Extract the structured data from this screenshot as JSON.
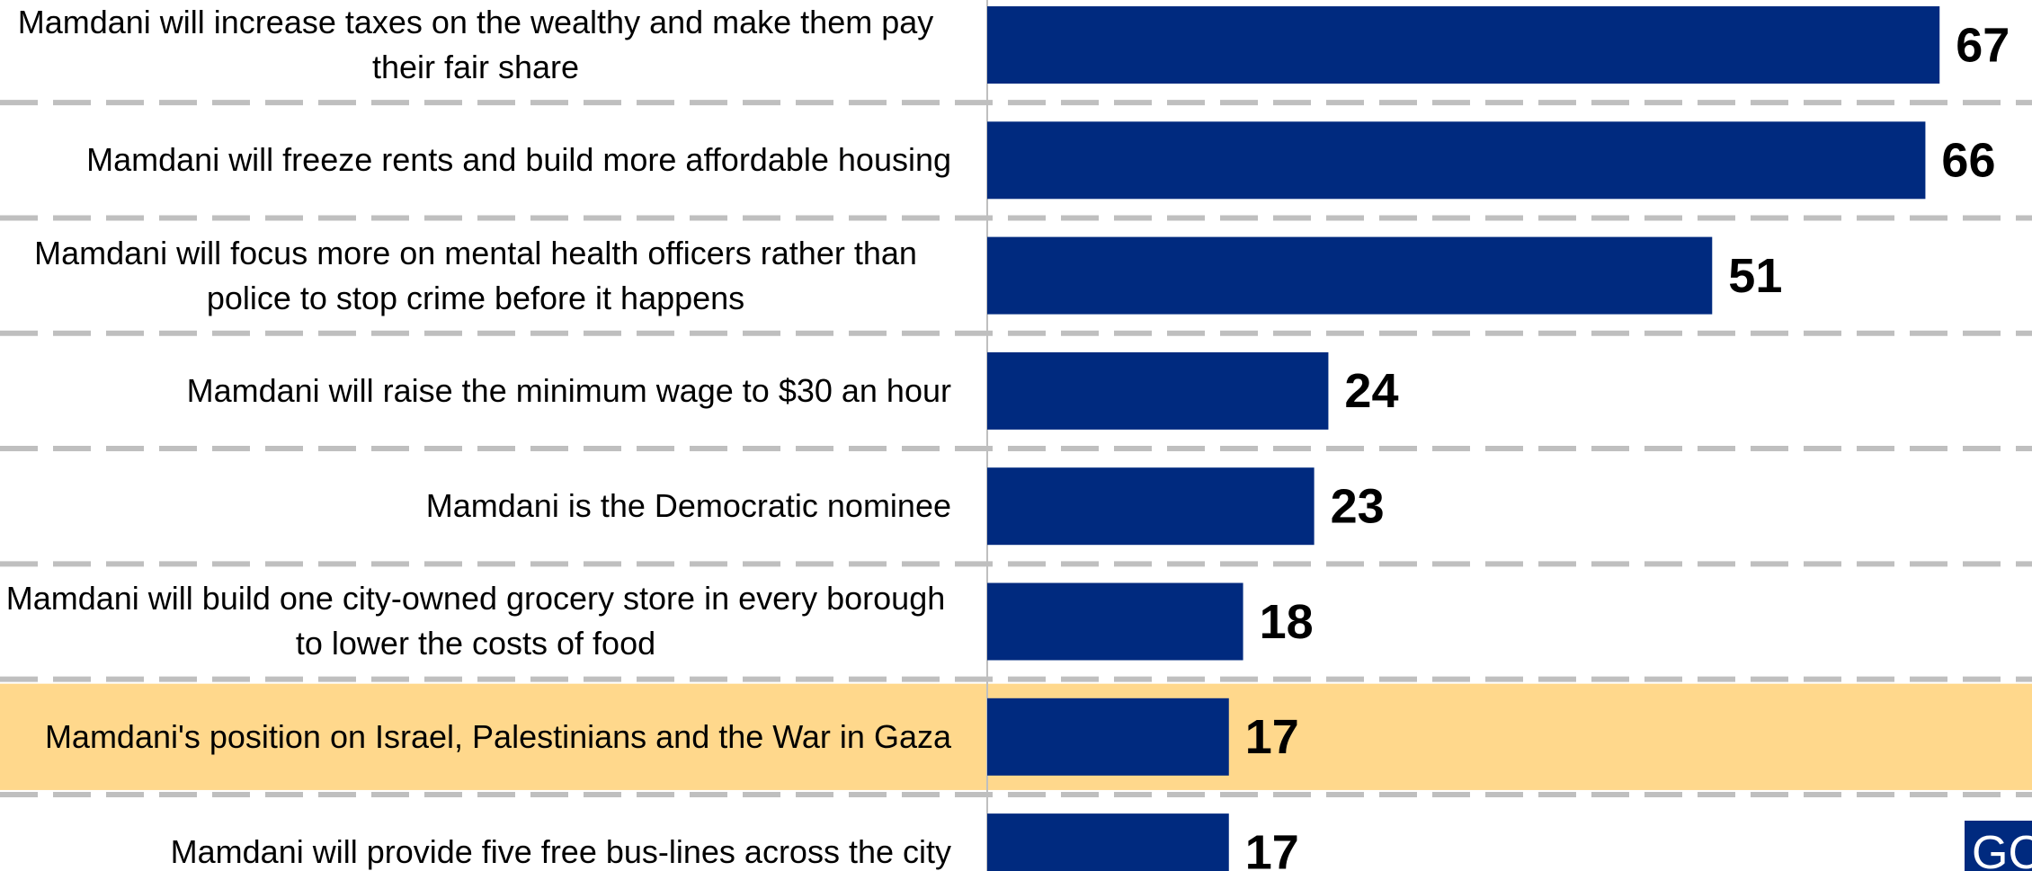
{
  "chart_data": {
    "type": "hbar",
    "categories": [
      "Mamdani will increase taxes on the wealthy and make them pay their fair share",
      "Mamdani will freeze rents and build more affordable housing",
      "Mamdani will focus more on mental health officers rather than police to stop crime before it happens",
      "Mamdani will raise the minimum wage to $30 an hour",
      "Mamdani is the Democratic nominee",
      "Mamdani will build one city-owned grocery store in every borough to lower the costs of food",
      "Mamdani's position on Israel, Palestinians and the War in Gaza",
      "Mamdani will provide five free bus-lines across the city"
    ],
    "values": [
      67,
      66,
      51,
      24,
      23,
      18,
      17,
      17
    ],
    "color": "#002a7f",
    "xlim": [
      0,
      73.5
    ],
    "highlight": {
      "index": 6,
      "color": "#ffd88c"
    },
    "logo": "GC"
  }
}
